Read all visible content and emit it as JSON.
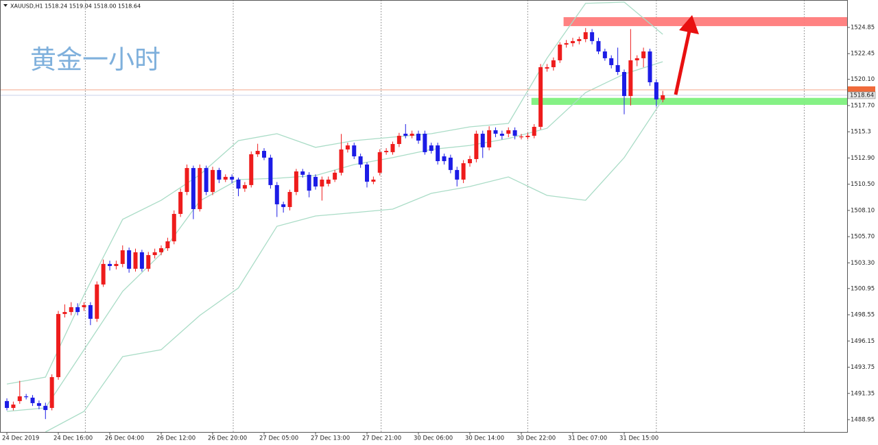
{
  "chart_data": {
    "type": "candlestick",
    "title": "XAUUSD,H1  1518.24 1519.04 1518.00 1518.64",
    "annotation": "黄金一小时",
    "up_color": "#ee1c1c",
    "down_color": "#1c1ce6",
    "band_color": "#a9dcc6",
    "xlim": [
      -1.07,
      130.67
    ],
    "ylim": [
      1487.82,
      1527.36
    ],
    "yticks": [
      1524.85,
      1522.45,
      {
        "value": 1520.1,
        "label": "1520.10"
      },
      {
        "value": 1517.7,
        "label": "1517.70"
      },
      1515.3,
      {
        "value": 1512.9,
        "label": "1512.90"
      },
      {
        "value": 1510.5,
        "label": "1510.50"
      },
      {
        "value": 1508.1,
        "label": "1508.10"
      },
      {
        "value": 1505.7,
        "label": "1505.70"
      },
      {
        "value": 1503.3,
        "label": "1503.30"
      },
      1500.95,
      1498.55,
      1496.15,
      1493.75,
      1491.35,
      1488.95
    ],
    "separators": [
      12.2,
      35.2,
      58.2,
      81,
      101,
      124
    ],
    "last_price": 1518.64,
    "ask_price": 1519.14,
    "categories": [
      "24 Dec 2019",
      null,
      null,
      null,
      null,
      null,
      null,
      null,
      "24 Dec 16:00",
      null,
      null,
      null,
      null,
      null,
      null,
      null,
      "26 Dec 04:00",
      null,
      null,
      null,
      null,
      null,
      null,
      null,
      "26 Dec 12:00",
      null,
      null,
      null,
      null,
      null,
      null,
      null,
      "26 Dec 20:00",
      null,
      null,
      null,
      null,
      null,
      null,
      null,
      "27 Dec 05:00",
      null,
      null,
      null,
      null,
      null,
      null,
      null,
      "27 Dec 13:00",
      null,
      null,
      null,
      null,
      null,
      null,
      null,
      "27 Dec 21:00",
      null,
      null,
      null,
      null,
      null,
      null,
      null,
      "30 Dec 06:00",
      null,
      null,
      null,
      null,
      null,
      null,
      null,
      "30 Dec 14:00",
      null,
      null,
      null,
      null,
      null,
      null,
      null,
      "30 Dec 22:00",
      null,
      null,
      null,
      null,
      null,
      null,
      null,
      "31 Dec 07:00",
      null,
      null,
      null,
      null,
      null,
      null,
      null,
      "31 Dec 15:00",
      null,
      null,
      null,
      null,
      null,
      null
    ],
    "open": [
      1490.65,
      1490.02,
      1490.65,
      1491.08,
      1490.96,
      1490.46,
      1490.21,
      1490.02,
      1492.84,
      1498.62,
      1498.8,
      1499.24,
      1499.24,
      1499.43,
      1498.18,
      1501.32,
      1503.2,
      1503.01,
      1503.2,
      1504.45,
      1502.76,
      1504.27,
      1502.76,
      1504.01,
      1504.27,
      1504.64,
      1505.27,
      1507.78,
      1509.79,
      1511.98,
      1508.22,
      1511.98,
      1509.79,
      1511.8,
      1510.92,
      1511.17,
      1510.92,
      1510.1,
      1510.42,
      1513.24,
      1513.55,
      1512.93,
      1510.42,
      1508.66,
      1508.41,
      1509.79,
      1511.67,
      1511.36,
      1511.17,
      1510.29,
      1510.54,
      1510.92,
      1511.55,
      1513.68,
      1514.05,
      1513.05,
      1512.3,
      1510.73,
      1511.55,
      1513.43,
      1513.43,
      1514.18,
      1515.12,
      1514.93,
      1515.12,
      1515.12,
      1514.05,
      1514.05,
      1513.05,
      1512.93,
      1511.8,
      1510.92,
      1512.42,
      1512.8,
      1515.12,
      1513.87,
      1515.44,
      1515.12,
      1515.12,
      1515.44,
      1514.81,
      1514.81,
      1514.93,
      1515.75,
      1521.08,
      1521.21,
      1521.84,
      1523.28,
      1523.41,
      1523.6,
      1523.78,
      1524.41,
      1523.6,
      1522.65,
      1522.03,
      1521.4,
      1520.77,
      1518.57,
      1521.84,
      1522.03,
      1522.65,
      1519.83,
      1518.24
    ],
    "high": [
      1490.9,
      1490.6,
      1492.5,
      1491.3,
      1491.2,
      1490.7,
      1490.5,
      1493.1,
      1498.9,
      1499.5,
      1499.7,
      1499.6,
      1499.7,
      1499.7,
      1501.6,
      1503.6,
      1503.5,
      1503.5,
      1504.9,
      1504.7,
      1504.6,
      1504.5,
      1504.3,
      1504.6,
      1504.9,
      1505.6,
      1508.1,
      1510.1,
      1512.3,
      1512.2,
      1512.3,
      1512.2,
      1512.1,
      1512.0,
      1511.4,
      1511.4,
      1511.1,
      1510.7,
      1513.5,
      1514.2,
      1513.8,
      1513.2,
      1510.7,
      1508.9,
      1510.0,
      1511.9,
      1511.9,
      1511.6,
      1511.4,
      1511.2,
      1511.2,
      1511.8,
      1515.1,
      1514.3,
      1514.3,
      1513.3,
      1512.5,
      1511.2,
      1513.7,
      1513.8,
      1514.4,
      1515.2,
      1516.0,
      1515.4,
      1515.4,
      1515.4,
      1514.3,
      1514.3,
      1513.3,
      1513.2,
      1512.1,
      1512.7,
      1513.1,
      1515.4,
      1515.4,
      1515.8,
      1515.7,
      1515.4,
      1515.7,
      1515.7,
      1515.1,
      1515.2,
      1516.0,
      1521.5,
      1521.5,
      1522.1,
      1523.5,
      1523.7,
      1523.9,
      1524.0,
      1524.8,
      1524.7,
      1523.9,
      1522.9,
      1522.3,
      1523.0,
      1521.0,
      1524.7,
      1522.3,
      1523.0,
      1522.9,
      1520.1,
      1519.04
    ],
    "low": [
      1489.8,
      1489.8,
      1490.4,
      1490.8,
      1490.2,
      1489.9,
      1489.0,
      1489.8,
      1492.6,
      1498.3,
      1498.5,
      1498.5,
      1498.9,
      1497.6,
      1497.9,
      1501.1,
      1502.6,
      1502.7,
      1502.9,
      1502.4,
      1502.5,
      1502.5,
      1502.5,
      1503.7,
      1504.0,
      1504.4,
      1505.0,
      1507.5,
      1509.5,
      1507.3,
      1508.0,
      1509.5,
      1509.5,
      1510.6,
      1510.7,
      1510.6,
      1509.4,
      1509.8,
      1510.2,
      1513.0,
      1512.7,
      1510.1,
      1507.5,
      1507.9,
      1508.1,
      1509.5,
      1511.1,
      1509.3,
      1510.0,
      1509.0,
      1510.3,
      1510.7,
      1511.3,
      1513.4,
      1512.8,
      1512.0,
      1510.2,
      1510.5,
      1511.3,
      1513.2,
      1513.2,
      1513.9,
      1514.7,
      1514.7,
      1514.2,
      1513.2,
      1513.3,
      1512.3,
      1512.3,
      1511.5,
      1510.3,
      1510.6,
      1512.1,
      1512.5,
      1512.9,
      1513.6,
      1514.8,
      1514.6,
      1514.8,
      1514.6,
      1514.6,
      1514.6,
      1514.7,
      1515.5,
      1520.8,
      1520.9,
      1521.6,
      1523.0,
      1523.1,
      1523.3,
      1523.5,
      1523.3,
      1522.4,
      1521.8,
      1521.1,
      1520.5,
      1516.9,
      1517.7,
      1521.3,
      1521.2,
      1519.5,
      1517.6,
      1518.0
    ],
    "close": [
      1490.02,
      1490.33,
      1491.08,
      1491.03,
      1490.46,
      1490.21,
      1489.83,
      1492.84,
      1498.62,
      1498.8,
      1499.24,
      1498.8,
      1499.43,
      1498.18,
      1501.32,
      1503.2,
      1503.01,
      1503.2,
      1504.45,
      1502.76,
      1504.27,
      1502.76,
      1504.01,
      1504.27,
      1504.64,
      1505.27,
      1507.78,
      1509.79,
      1511.98,
      1508.22,
      1511.98,
      1509.79,
      1511.8,
      1510.92,
      1511.17,
      1510.92,
      1510.1,
      1510.42,
      1513.24,
      1513.55,
      1512.93,
      1510.42,
      1508.66,
      1508.41,
      1509.79,
      1511.67,
      1511.36,
      1509.91,
      1510.29,
      1510.92,
      1510.92,
      1511.55,
      1513.68,
      1514.05,
      1513.05,
      1512.3,
      1510.73,
      1510.92,
      1513.43,
      1513.55,
      1514.18,
      1514.93,
      1514.93,
      1515.12,
      1514.49,
      1513.43,
      1513.55,
      1512.61,
      1512.61,
      1511.8,
      1510.92,
      1512.42,
      1512.8,
      1515.12,
      1513.87,
      1515.44,
      1515.12,
      1514.93,
      1515.44,
      1514.93,
      1514.87,
      1514.93,
      1515.75,
      1521.21,
      1521.21,
      1521.84,
      1523.28,
      1523.41,
      1523.6,
      1523.78,
      1524.41,
      1523.6,
      1522.65,
      1522.03,
      1521.4,
      1520.77,
      1518.57,
      1521.84,
      1522.03,
      1522.65,
      1519.83,
      1518.26,
      1518.64
    ],
    "bands": [
      {
        "x": [
          0,
          6,
          12,
          18,
          24,
          30,
          36,
          42,
          48,
          54,
          60,
          66,
          72,
          78,
          84,
          90,
          96,
          102
        ],
        "values": [
          1492.21,
          1492.84,
          1500.37,
          1507.28,
          1509.03,
          1511.36,
          1514.49,
          1515.12,
          1513.87,
          1514.49,
          1514.81,
          1515.12,
          1515.75,
          1516.06,
          1522.03,
          1527.05,
          1527.17,
          1524.22
        ]
      },
      {
        "x": [
          0,
          6,
          12,
          18,
          24,
          30,
          36,
          42,
          48,
          54,
          60,
          66,
          72,
          78,
          84,
          90,
          96,
          102
        ],
        "values": [
          1489.7,
          1490.02,
          1495.35,
          1500.69,
          1504.14,
          1508.97,
          1510.92,
          1511.04,
          1511.29,
          1512.3,
          1512.93,
          1513.68,
          1514.05,
          1514.68,
          1515.62,
          1518.89,
          1520.58,
          1521.71
        ]
      },
      {
        "x": [
          6,
          12,
          18,
          24,
          30,
          36,
          42,
          48,
          54,
          60,
          66,
          72,
          78,
          84,
          90,
          96,
          102
        ],
        "values": [
          1487.82,
          1489.7,
          1494.72,
          1495.35,
          1498.49,
          1501.0,
          1506.65,
          1507.59,
          1507.9,
          1508.22,
          1509.66,
          1510.29,
          1511.17,
          1509.47,
          1509.03,
          1512.93,
          1518.26
        ]
      }
    ],
    "zones": [
      {
        "color": "#ff7b7b",
        "start": 87,
        "range": [
          1524.97,
          1525.79
        ]
      },
      {
        "color": "#7ef07e",
        "start": 82,
        "range": [
          1517.76,
          1518.4
        ]
      }
    ]
  }
}
